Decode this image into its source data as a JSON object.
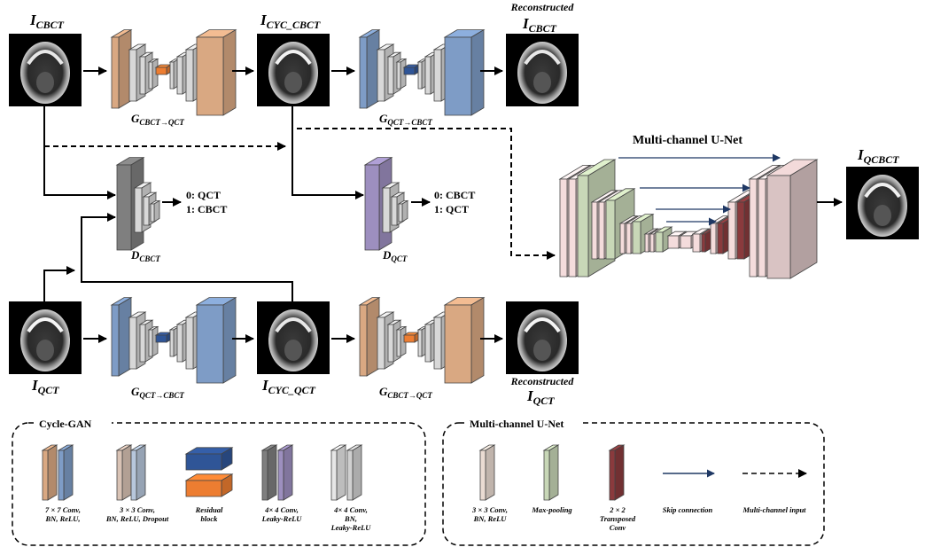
{
  "images": {
    "i_cbct": {
      "main": "I",
      "sub": "CBCT"
    },
    "i_cyc_cbct": {
      "main": "I",
      "sub": "CYC_CBCT"
    },
    "rec_cbct": {
      "title": "Reconstructed",
      "main": "I",
      "sub": "CBCT"
    },
    "i_qct": {
      "main": "I",
      "sub": "QCT"
    },
    "i_cyc_qct": {
      "main": "I",
      "sub": "CYC_QCT"
    },
    "rec_qct": {
      "title": "Reconstructed",
      "main": "I",
      "sub": "QCT"
    },
    "i_qcbct": {
      "main": "I",
      "sub": "QCBCT"
    }
  },
  "generators": {
    "g1": {
      "main": "G",
      "sub": "CBCT→QCT"
    },
    "g2": {
      "main": "G",
      "sub": "QCT→CBCT"
    },
    "g3": {
      "main": "G",
      "sub": "QCT→CBCT"
    },
    "g4": {
      "main": "G",
      "sub": "CBCT→QCT"
    }
  },
  "discriminators": {
    "d_cbct": {
      "main": "D",
      "sub": "CBCT",
      "out0": "0: QCT",
      "out1": "1: CBCT"
    },
    "d_qct": {
      "main": "D",
      "sub": "QCT",
      "out0": "0: CBCT",
      "out1": "1: QCT"
    }
  },
  "unet": {
    "title": "Multi-channel U-Net"
  },
  "legend_cyclegan": {
    "title": "Cycle-GAN",
    "items": [
      {
        "l1": "7 × 7 Conv,",
        "l2": "BN, ReLU,",
        "l3": ""
      },
      {
        "l1": "3 × 3 Conv,",
        "l2": "BN, ReLU, Dropout",
        "l3": ""
      },
      {
        "l1": "Residual",
        "l2": "block",
        "l3": ""
      },
      {
        "l1": "4× 4 Conv,",
        "l2": "Leaky-ReLU",
        "l3": ""
      },
      {
        "l1": "4× 4 Conv,",
        "l2": "BN,",
        "l3": "Leaky-ReLU"
      }
    ]
  },
  "legend_unet": {
    "title": "Multi-channel U-Net",
    "items": [
      {
        "l1": "3 × 3 Conv,",
        "l2": "BN, ReLU",
        "l3": ""
      },
      {
        "l1": "Max-pooling",
        "l2": "",
        "l3": ""
      },
      {
        "l1": "2 × 2",
        "l2": "Transposed",
        "l3": "Conv"
      },
      {
        "l1": "Skip connection",
        "l2": "",
        "l3": ""
      },
      {
        "l1": "Multi-channel input",
        "l2": "",
        "l3": ""
      }
    ]
  },
  "colors": {
    "orange": "#d9a882",
    "orange_dark": "#b8855e",
    "blue": "#7e9cc6",
    "blue_dark": "#5c7aa6",
    "light": "#d8d8d8",
    "gray_dark": "#7f7f7f",
    "purple": "#9d8fbf",
    "green": "#c8d7b7",
    "pink": "#f4dcdc",
    "maroon": "#8a3a3d",
    "res_orange": "#ed7d31",
    "res_blue": "#2f5597",
    "skip": "#1f3864"
  }
}
